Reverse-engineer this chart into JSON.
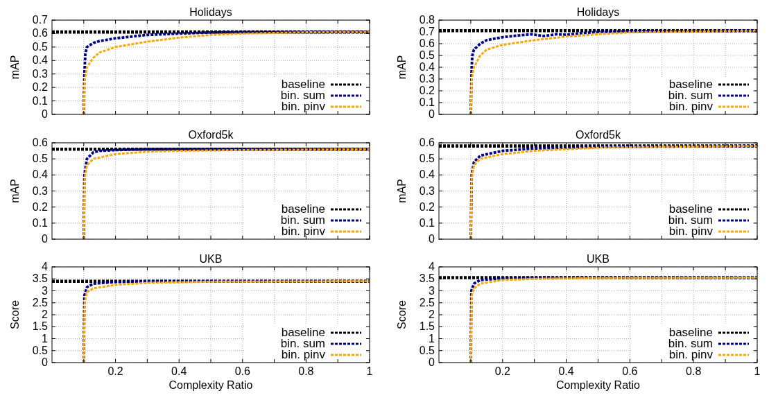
{
  "chart_data": [
    {
      "type": "line",
      "title": "Holidays",
      "ylabel": "mAP",
      "xlim": [
        0,
        1
      ],
      "xticks": [
        {
          "value": 0.1,
          "label": null
        },
        0.2,
        {
          "value": 0.3,
          "label": null
        },
        0.4,
        {
          "value": 0.5,
          "label": null
        },
        0.6,
        {
          "value": 0.7,
          "label": null
        },
        0.8,
        {
          "value": 0.9,
          "label": null
        },
        1
      ],
      "ylim": [
        0,
        0.7
      ],
      "yticks": [
        0,
        0.1,
        0.2,
        0.3,
        0.4,
        0.5,
        0.6,
        0.7
      ],
      "grid": true,
      "legend": "bottom right",
      "line_style": "dashed",
      "tick_labels": "y",
      "series": [
        {
          "name": "baseline",
          "color": "#000000",
          "x": [
            0,
            1
          ],
          "values": [
            0.612,
            0.612
          ]
        },
        {
          "name": "bin. sum",
          "color": "#00008b",
          "x": [
            0.1,
            0.102,
            0.105,
            0.11,
            0.13,
            0.15,
            0.2,
            0.3,
            0.4,
            0.5,
            0.6,
            1
          ],
          "values": [
            0,
            0.3,
            0.45,
            0.5,
            0.53,
            0.545,
            0.565,
            0.59,
            0.6,
            0.608,
            0.61,
            0.612
          ]
        },
        {
          "name": "bin. pinv",
          "color": "#ffa500",
          "x": [
            0.1,
            0.103,
            0.11,
            0.13,
            0.15,
            0.2,
            0.3,
            0.4,
            0.5,
            0.6,
            0.8,
            1
          ],
          "values": [
            0,
            0.25,
            0.35,
            0.42,
            0.46,
            0.5,
            0.54,
            0.57,
            0.59,
            0.6,
            0.61,
            0.612
          ]
        }
      ]
    },
    {
      "type": "line",
      "title": "Holidays",
      "ylabel": "mAP",
      "xlim": [
        0,
        1
      ],
      "xticks": [
        {
          "value": 0.1,
          "label": null
        },
        0.2,
        {
          "value": 0.3,
          "label": null
        },
        0.4,
        {
          "value": 0.5,
          "label": null
        },
        0.6,
        {
          "value": 0.7,
          "label": null
        },
        0.8,
        {
          "value": 0.9,
          "label": null
        },
        1
      ],
      "ylim": [
        0,
        0.8
      ],
      "yticks": [
        0,
        0.1,
        0.2,
        0.3,
        0.4,
        0.5,
        0.6,
        0.7,
        0.8
      ],
      "grid": true,
      "legend": "bottom right",
      "line_style": "dashed",
      "tick_labels": "y",
      "series": [
        {
          "name": "baseline",
          "color": "#000000",
          "x": [
            0,
            1
          ],
          "values": [
            0.71,
            0.71
          ]
        },
        {
          "name": "bin. sum",
          "color": "#00008b",
          "x": [
            0.1,
            0.103,
            0.105,
            0.11,
            0.13,
            0.15,
            0.2,
            0.25,
            0.29,
            0.33,
            0.37,
            0.4,
            0.45,
            0.5,
            0.6,
            1
          ],
          "values": [
            0,
            0.4,
            0.5,
            0.55,
            0.6,
            0.63,
            0.655,
            0.67,
            0.68,
            0.665,
            0.68,
            0.675,
            0.69,
            0.7,
            0.705,
            0.71
          ]
        },
        {
          "name": "bin. pinv",
          "color": "#ffa500",
          "x": [
            0.1,
            0.103,
            0.11,
            0.13,
            0.15,
            0.2,
            0.3,
            0.4,
            0.5,
            0.6,
            0.7,
            1
          ],
          "values": [
            0,
            0.3,
            0.4,
            0.5,
            0.55,
            0.59,
            0.63,
            0.66,
            0.68,
            0.695,
            0.7,
            0.71
          ]
        }
      ]
    },
    {
      "type": "line",
      "title": "Oxford5k",
      "ylabel": "mAP",
      "xlim": [
        0,
        1
      ],
      "xticks": [
        {
          "value": 0.1,
          "label": null
        },
        0.2,
        {
          "value": 0.3,
          "label": null
        },
        0.4,
        {
          "value": 0.5,
          "label": null
        },
        0.6,
        {
          "value": 0.7,
          "label": null
        },
        0.8,
        {
          "value": 0.9,
          "label": null
        },
        1
      ],
      "ylim": [
        0,
        0.6
      ],
      "yticks": [
        0,
        0.1,
        0.2,
        0.3,
        0.4,
        0.5,
        0.6
      ],
      "grid": true,
      "legend": "bottom right",
      "line_style": "dashed",
      "tick_labels": "y",
      "series": [
        {
          "name": "baseline",
          "color": "#000000",
          "x": [
            0,
            1
          ],
          "values": [
            0.56,
            0.56
          ]
        },
        {
          "name": "bin. sum",
          "color": "#00008b",
          "x": [
            0.1,
            0.102,
            0.11,
            0.13,
            0.15,
            0.2,
            0.3,
            1
          ],
          "values": [
            0,
            0.4,
            0.5,
            0.54,
            0.55,
            0.555,
            0.56,
            0.56
          ]
        },
        {
          "name": "bin. pinv",
          "color": "#ffa500",
          "x": [
            0.1,
            0.103,
            0.11,
            0.13,
            0.2,
            0.3,
            0.4,
            0.6,
            1
          ],
          "values": [
            0,
            0.38,
            0.46,
            0.5,
            0.53,
            0.545,
            0.55,
            0.555,
            0.56
          ]
        }
      ]
    },
    {
      "type": "line",
      "title": "Oxford5k",
      "ylabel": "mAP",
      "xlim": [
        0,
        1
      ],
      "xticks": [
        {
          "value": 0.1,
          "label": null
        },
        0.2,
        {
          "value": 0.3,
          "label": null
        },
        0.4,
        {
          "value": 0.5,
          "label": null
        },
        0.6,
        {
          "value": 0.7,
          "label": null
        },
        0.8,
        {
          "value": 0.9,
          "label": null
        },
        1
      ],
      "ylim": [
        0,
        0.6
      ],
      "yticks": [
        0,
        0.1,
        0.2,
        0.3,
        0.4,
        0.5,
        0.6
      ],
      "grid": true,
      "legend": "bottom right",
      "line_style": "dashed",
      "tick_labels": "y",
      "series": [
        {
          "name": "baseline",
          "color": "#000000",
          "x": [
            0,
            1
          ],
          "values": [
            0.58,
            0.58
          ]
        },
        {
          "name": "bin. sum",
          "color": "#00008b",
          "x": [
            0.1,
            0.103,
            0.11,
            0.13,
            0.2,
            0.3,
            0.5,
            1
          ],
          "values": [
            0,
            0.4,
            0.48,
            0.52,
            0.55,
            0.565,
            0.575,
            0.58
          ]
        },
        {
          "name": "bin. pinv",
          "color": "#ffa500",
          "x": [
            0.1,
            0.103,
            0.11,
            0.13,
            0.2,
            0.3,
            0.5,
            0.7,
            1
          ],
          "values": [
            0,
            0.38,
            0.46,
            0.5,
            0.53,
            0.55,
            0.57,
            0.575,
            0.58
          ]
        }
      ]
    },
    {
      "type": "line",
      "title": "UKB",
      "ylabel": "Score",
      "xlabel": "Complexity Ratio",
      "xlim": [
        0,
        1
      ],
      "xticks": [
        {
          "value": 0.1,
          "label": null
        },
        0.2,
        {
          "value": 0.3,
          "label": null
        },
        0.4,
        {
          "value": 0.5,
          "label": null
        },
        0.6,
        {
          "value": 0.7,
          "label": null
        },
        0.8,
        {
          "value": 0.9,
          "label": null
        },
        1
      ],
      "ylim": [
        0,
        4
      ],
      "yticks": [
        0,
        0.5,
        1,
        1.5,
        2,
        2.5,
        3,
        3.5,
        4
      ],
      "grid": true,
      "legend": "bottom right",
      "line_style": "dashed",
      "series": [
        {
          "name": "baseline",
          "color": "#000000",
          "x": [
            0,
            1
          ],
          "values": [
            3.4,
            3.4
          ]
        },
        {
          "name": "bin. sum",
          "color": "#00008b",
          "x": [
            0.1,
            0.102,
            0.11,
            0.13,
            0.2,
            0.3,
            1
          ],
          "values": [
            0,
            2.8,
            3.15,
            3.3,
            3.37,
            3.4,
            3.4
          ]
        },
        {
          "name": "bin. pinv",
          "color": "#ffa500",
          "x": [
            0.1,
            0.103,
            0.11,
            0.13,
            0.2,
            0.3,
            0.5,
            1
          ],
          "values": [
            0,
            2.5,
            2.95,
            3.1,
            3.25,
            3.33,
            3.38,
            3.4
          ]
        }
      ]
    },
    {
      "type": "line",
      "title": "UKB",
      "ylabel": "Score",
      "xlabel": "Complexity Ratio",
      "xlim": [
        0,
        1
      ],
      "xticks": [
        {
          "value": 0.1,
          "label": null
        },
        0.2,
        {
          "value": 0.3,
          "label": null
        },
        0.4,
        {
          "value": 0.5,
          "label": null
        },
        0.6,
        {
          "value": 0.7,
          "label": null
        },
        0.8,
        {
          "value": 0.9,
          "label": null
        },
        1
      ],
      "ylim": [
        0,
        4
      ],
      "yticks": [
        0,
        0.5,
        1,
        1.5,
        2,
        2.5,
        3,
        3.5,
        4
      ],
      "grid": true,
      "legend": "bottom right",
      "line_style": "dashed",
      "series": [
        {
          "name": "baseline",
          "color": "#000000",
          "x": [
            0,
            1
          ],
          "values": [
            3.55,
            3.55
          ]
        },
        {
          "name": "bin. sum",
          "color": "#00008b",
          "x": [
            0.1,
            0.102,
            0.11,
            0.13,
            0.2,
            0.3,
            1
          ],
          "values": [
            0,
            3.0,
            3.3,
            3.45,
            3.52,
            3.55,
            3.55
          ]
        },
        {
          "name": "bin. pinv",
          "color": "#ffa500",
          "x": [
            0.1,
            0.103,
            0.11,
            0.13,
            0.2,
            0.3,
            0.5,
            1
          ],
          "values": [
            0,
            2.8,
            3.1,
            3.3,
            3.45,
            3.5,
            3.53,
            3.55
          ]
        }
      ]
    }
  ]
}
